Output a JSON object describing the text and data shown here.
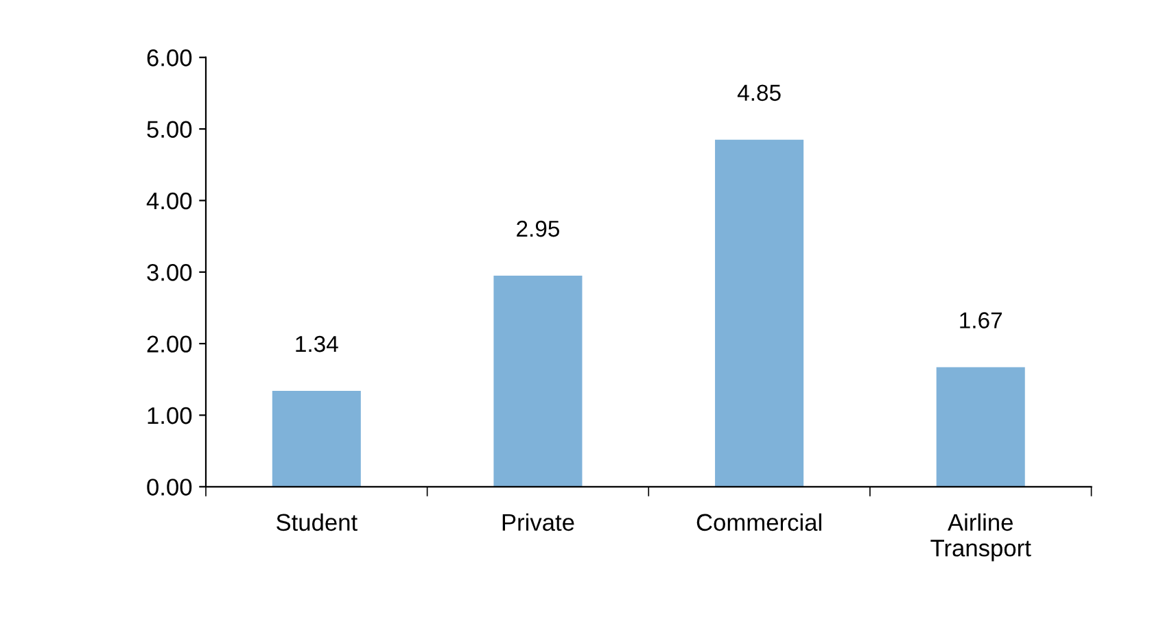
{
  "chart_data": {
    "type": "bar",
    "categories": [
      "Student",
      "Private",
      "Commercial",
      "Airline\nTransport"
    ],
    "values": [
      1.34,
      2.95,
      4.85,
      1.67
    ],
    "color": "#7fb2d9",
    "ylim": [
      0,
      6
    ],
    "yticks": [
      {
        "value": 0,
        "label": "0.00"
      },
      {
        "value": 1,
        "label": "1.00"
      },
      {
        "value": 2,
        "label": "2.00"
      },
      {
        "value": 3,
        "label": "3.00"
      },
      {
        "value": 4,
        "label": "4.00"
      },
      {
        "value": 5,
        "label": "5.00"
      },
      {
        "value": 6,
        "label": "6.00"
      }
    ],
    "data_labels": true,
    "grid": false,
    "legend": false
  }
}
